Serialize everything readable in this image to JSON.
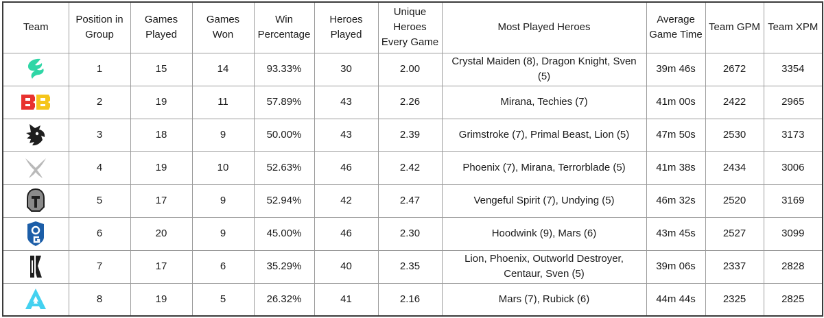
{
  "headers": [
    "Team",
    "Position in Group",
    "Games Played",
    "Games Won",
    "Win Percentage",
    "Heroes Played",
    "Unique Heroes Every Game",
    "Most Played Heroes",
    "Average Game Time",
    "Team GPM",
    "Team XPM"
  ],
  "rows": [
    {
      "logo_icon": "team-spirit-dragon-icon",
      "position": "1",
      "games_played": "15",
      "games_won": "14",
      "win_pct": "93.33%",
      "heroes_played": "30",
      "unique": "2.00",
      "most_played": "Crystal Maiden (8), Dragon Knight, Sven (5)",
      "avg_time": "39m 46s",
      "gpm": "2672",
      "xpm": "3354"
    },
    {
      "logo_icon": "betboom-bb-icon",
      "position": "2",
      "games_played": "19",
      "games_won": "11",
      "win_pct": "57.89%",
      "heroes_played": "43",
      "unique": "2.26",
      "most_played": "Mirana, Techies (7)",
      "avg_time": "41m 00s",
      "gpm": "2422",
      "xpm": "2965"
    },
    {
      "logo_icon": "team-spirit-beast-icon",
      "position": "3",
      "games_played": "18",
      "games_won": "9",
      "win_pct": "50.00%",
      "heroes_played": "43",
      "unique": "2.39",
      "most_played": "Grimstroke (7), Primal Beast, Lion (5)",
      "avg_time": "47m 50s",
      "gpm": "2530",
      "xpm": "3173"
    },
    {
      "logo_icon": "wings-x-icon",
      "position": "4",
      "games_played": "19",
      "games_won": "10",
      "win_pct": "52.63%",
      "heroes_played": "46",
      "unique": "2.42",
      "most_played": "Phoenix (7), Mirana, Terrorblade (5)",
      "avg_time": "41m 38s",
      "gpm": "2434",
      "xpm": "3006"
    },
    {
      "logo_icon": "gladiators-helmet-icon",
      "position": "5",
      "games_played": "17",
      "games_won": "9",
      "win_pct": "52.94%",
      "heroes_played": "42",
      "unique": "2.47",
      "most_played": "Vengeful Spirit (7), Undying (5)",
      "avg_time": "46m 32s",
      "gpm": "2520",
      "xpm": "3169"
    },
    {
      "logo_icon": "og-shield-icon",
      "position": "6",
      "games_played": "20",
      "games_won": "9",
      "win_pct": "45.00%",
      "heroes_played": "46",
      "unique": "2.30",
      "most_played": "Hoodwink (9), Mars (6)",
      "avg_time": "43m 45s",
      "gpm": "2527",
      "xpm": "3099"
    },
    {
      "logo_icon": "shopify-rebellion-icon",
      "position": "7",
      "games_played": "17",
      "games_won": "6",
      "win_pct": "35.29%",
      "heroes_played": "40",
      "unique": "2.35",
      "most_played": "Lion, Phoenix, Outworld Destroyer, Centaur, Sven (5)",
      "avg_time": "39m 06s",
      "gpm": "2337",
      "xpm": "2828"
    },
    {
      "logo_icon": "aurora-a-icon",
      "position": "8",
      "games_played": "19",
      "games_won": "5",
      "win_pct": "26.32%",
      "heroes_played": "41",
      "unique": "2.16",
      "most_played": "Mars (7), Rubick (6)",
      "avg_time": "44m 44s",
      "gpm": "2325",
      "xpm": "2825"
    }
  ],
  "colors": {
    "spirit_teal": "#2fd6a6",
    "betboom_red": "#e8322f",
    "betboom_yellow": "#f5c51b",
    "og_blue": "#1c5ea8",
    "aurora_cyan": "#44d1f0",
    "gray": "#8a8a8a",
    "dark": "#1e1e1e"
  }
}
